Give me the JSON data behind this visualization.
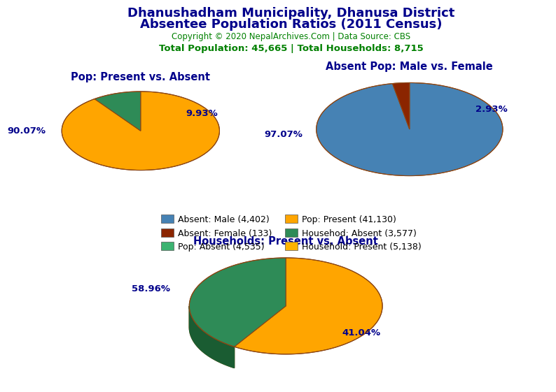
{
  "title_line1": "Dhanushadham Municipality, Dhanusa District",
  "title_line2": "Absentee Population Ratios (2011 Census)",
  "copyright": "Copyright © 2020 NepalArchives.Com | Data Source: CBS",
  "stats": "Total Population: 45,665 | Total Households: 8,715",
  "title_color": "#00008B",
  "copyright_color": "#008000",
  "stats_color": "#008000",
  "pie1_title": "Pop: Present vs. Absent",
  "pie2_title": "Absent Pop: Male vs. Female",
  "pie3_title": "Households: Present vs. Absent",
  "subtitle_color": "#00008B",
  "pie1_values": [
    90.07,
    9.93
  ],
  "pie1_colors": [
    "#FFA500",
    "#2E8B57"
  ],
  "pie1_shadow_colors": [
    "#B8600A",
    "#1A5C32"
  ],
  "pie2_values": [
    97.07,
    2.93
  ],
  "pie2_colors": [
    "#4682B4",
    "#8B2500"
  ],
  "pie2_shadow_colors": [
    "#1E4A6E",
    "#5C1800"
  ],
  "pie3_values": [
    58.96,
    41.04
  ],
  "pie3_colors": [
    "#FFA500",
    "#2E8B57"
  ],
  "pie3_shadow_colors": [
    "#B8600A",
    "#1A5C32"
  ],
  "legend_items": [
    {
      "label": "Absent: Male (4,402)",
      "color": "#4682B4"
    },
    {
      "label": "Absent: Female (133)",
      "color": "#8B2500"
    },
    {
      "label": "Pop: Absent (4,535)",
      "color": "#3CB371"
    },
    {
      "label": "Pop: Present (41,130)",
      "color": "#FFA500"
    },
    {
      "label": "Househod: Absent (3,577)",
      "color": "#2E8B57"
    },
    {
      "label": "Household: Present (5,138)",
      "color": "#FFB300"
    }
  ],
  "bg_color": "#FFFFFF",
  "label_color": "#00008B"
}
